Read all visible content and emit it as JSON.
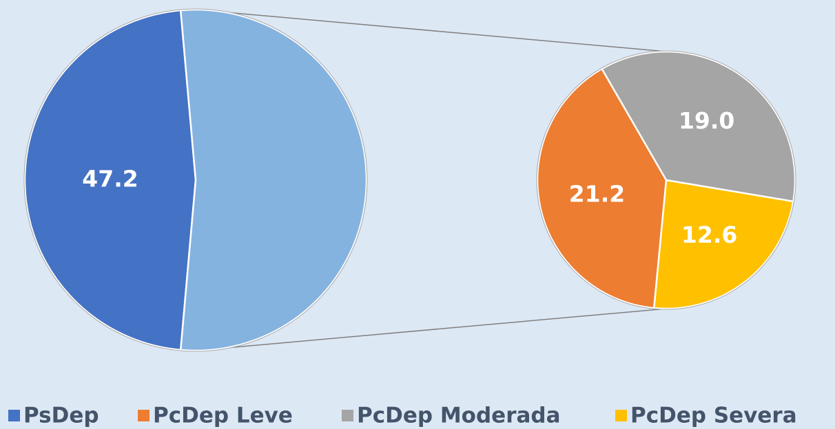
{
  "chart_data": {
    "type": "pie-of-pie",
    "categories": [
      "PsDep",
      "PcDep Leve",
      "PcDep Moderada",
      "PcDep Severa"
    ],
    "values": [
      47.2,
      21.2,
      19.0,
      12.6
    ],
    "value_labels": [
      "47.2",
      "21.2",
      "19.0",
      "12.6"
    ],
    "colors": [
      "#4472c4",
      "#ed7d31",
      "#a5a5a5",
      "#ffc000"
    ],
    "other_color": "#85b3e0",
    "legend": "bottom"
  }
}
